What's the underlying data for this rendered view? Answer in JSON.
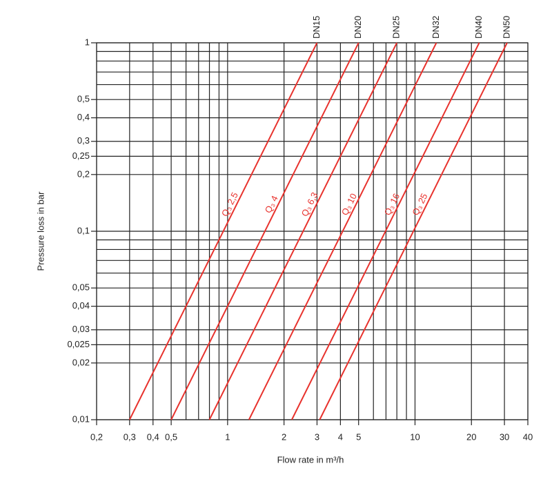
{
  "chart_data": {
    "type": "line",
    "xlabel": "Flow rate in m³/h",
    "ylabel": "Pressure loss in bar",
    "xscale": "log",
    "yscale": "log",
    "xlim": [
      0.2,
      40
    ],
    "ylim": [
      0.01,
      1
    ],
    "xticks": [
      {
        "value": 0.2,
        "label": "0,2"
      },
      {
        "value": 0.3,
        "label": "0,3"
      },
      {
        "value": 0.4,
        "label": "0,4"
      },
      {
        "value": 0.5,
        "label": "0,5"
      },
      1,
      2,
      3,
      4,
      5,
      10,
      20,
      30,
      40
    ],
    "xminor": [
      0.6,
      0.7,
      0.8,
      0.9,
      6,
      7,
      8,
      9
    ],
    "yticks": [
      {
        "value": 0.01,
        "label": "0,01"
      },
      {
        "value": 0.02,
        "label": "0,02"
      },
      {
        "value": 0.025,
        "label": "0,025"
      },
      {
        "value": 0.03,
        "label": "0,03"
      },
      {
        "value": 0.04,
        "label": "0,04"
      },
      {
        "value": 0.05,
        "label": "0,05"
      },
      {
        "value": 0.1,
        "label": "0,1"
      },
      {
        "value": 0.2,
        "label": "0,2"
      },
      {
        "value": 0.25,
        "label": "0,25"
      },
      {
        "value": 0.3,
        "label": "0,3"
      },
      {
        "value": 0.4,
        "label": "0,4"
      },
      {
        "value": 0.5,
        "label": "0,5"
      },
      1
    ],
    "yminor": [
      0.06,
      0.07,
      0.08,
      0.09,
      0.6,
      0.7,
      0.8,
      0.9
    ],
    "grid": true,
    "series": [
      {
        "name": "DN15",
        "label": "Q₃ 2,5",
        "color": "#e8322d",
        "x": [
          0.3,
          3
        ],
        "values": [
          0.01,
          1
        ]
      },
      {
        "name": "DN20",
        "label": "Q₃ 4",
        "color": "#e8322d",
        "x": [
          0.5,
          5
        ],
        "values": [
          0.01,
          1
        ]
      },
      {
        "name": "DN25",
        "label": "Q₃ 6,3",
        "color": "#e8322d",
        "x": [
          0.8,
          8
        ],
        "values": [
          0.01,
          1
        ]
      },
      {
        "name": "DN32",
        "label": "Q₃ 10",
        "color": "#e8322d",
        "x": [
          1.3,
          13
        ],
        "values": [
          0.01,
          1
        ]
      },
      {
        "name": "DN40",
        "label": "Q₃ 16",
        "color": "#e8322d",
        "x": [
          2.2,
          22
        ],
        "values": [
          0.01,
          1
        ]
      },
      {
        "name": "DN50",
        "label": "Q₃ 25",
        "color": "#e8322d",
        "x": [
          3.1,
          31
        ],
        "values": [
          0.01,
          1
        ]
      }
    ]
  }
}
